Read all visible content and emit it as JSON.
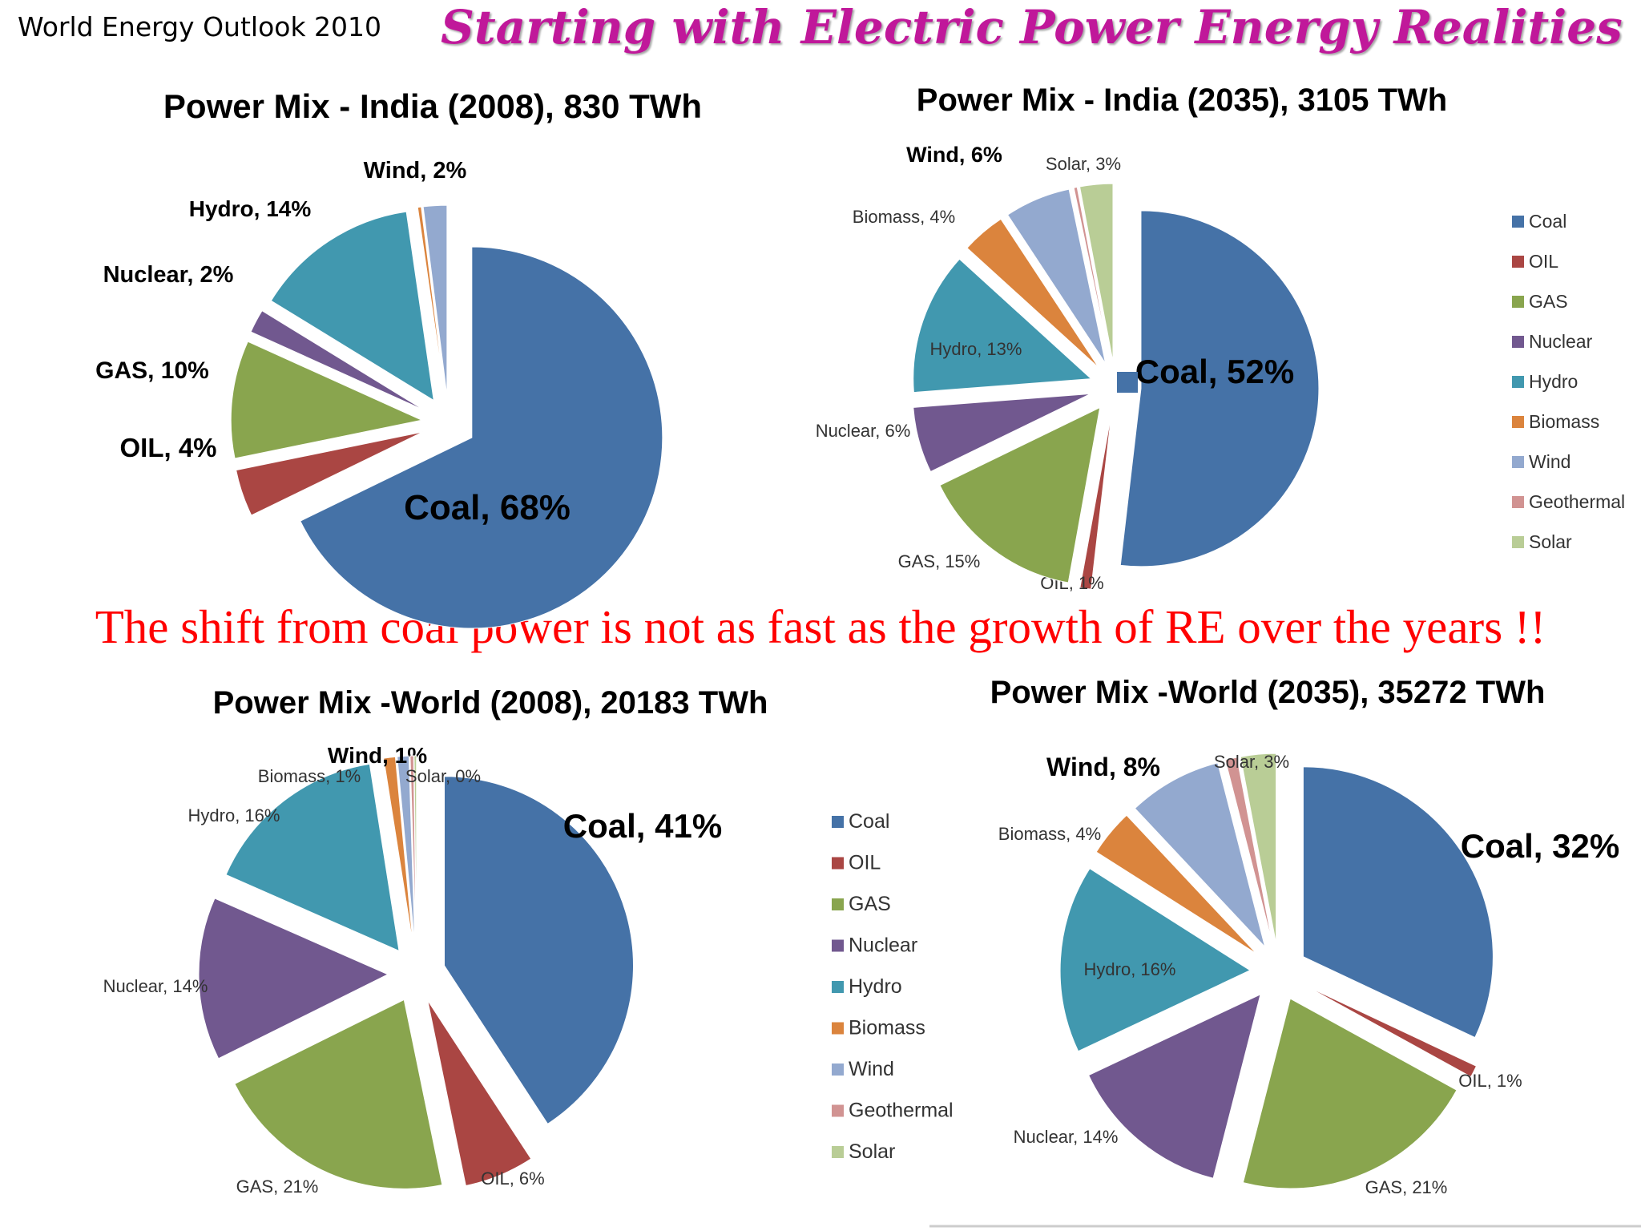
{
  "source": "World Energy Outlook 2010",
  "title": "Starting  with  Electric Power  Energy  Realities",
  "headline": "The shift from coal power is not  as  fast  as  the growth of RE  over the years !!",
  "colors": {
    "Coal": "#4572a7",
    "OIL": "#aa4643",
    "GAS": "#89a54e",
    "Nuclear": "#71588f",
    "Hydro": "#4198af",
    "Biomass": "#db843d",
    "Wind": "#93a9cf",
    "Geothermal": "#d19392",
    "Solar": "#b9cd96"
  },
  "legend": [
    "Coal",
    "OIL",
    "GAS",
    "Nuclear",
    "Hydro",
    "Biomass",
    "Wind",
    "Geothermal",
    "Solar"
  ],
  "chart_data": [
    {
      "type": "pie",
      "title": "Power Mix - India (2008), 830 TWh",
      "slices": [
        {
          "name": "Coal",
          "value": 68,
          "label": "Coal, 68%"
        },
        {
          "name": "OIL",
          "value": 4,
          "label": "OIL, 4%"
        },
        {
          "name": "GAS",
          "value": 10,
          "label": "GAS, 10%"
        },
        {
          "name": "Nuclear",
          "value": 2,
          "label": "Nuclear, 2%"
        },
        {
          "name": "Hydro",
          "value": 14,
          "label": "Hydro, 14%"
        },
        {
          "name": "Biomass",
          "value": 0.3,
          "label": ""
        },
        {
          "name": "Wind",
          "value": 2,
          "label": "Wind, 2%"
        }
      ]
    },
    {
      "type": "pie",
      "title": "Power Mix - India (2035), 3105 TWh",
      "slices": [
        {
          "name": "Coal",
          "value": 52,
          "label": "Coal, 52%"
        },
        {
          "name": "OIL",
          "value": 1,
          "label": "OIL, 1%"
        },
        {
          "name": "GAS",
          "value": 15,
          "label": "GAS, 15%"
        },
        {
          "name": "Nuclear",
          "value": 6,
          "label": "Nuclear, 6%"
        },
        {
          "name": "Hydro",
          "value": 13,
          "label": "Hydro, 13%"
        },
        {
          "name": "Biomass",
          "value": 4,
          "label": "Biomass, 4%"
        },
        {
          "name": "Wind",
          "value": 6,
          "label": "Wind, 6%"
        },
        {
          "name": "Geothermal",
          "value": 0.3,
          "label": ""
        },
        {
          "name": "Solar",
          "value": 3,
          "label": "Solar, 3%"
        }
      ],
      "legend_position": "right"
    },
    {
      "type": "pie",
      "title": "Power Mix -World (2008), 20183 TWh",
      "slices": [
        {
          "name": "Coal",
          "value": 41,
          "label": "Coal, 41%"
        },
        {
          "name": "OIL",
          "value": 6,
          "label": "OIL, 6%"
        },
        {
          "name": "GAS",
          "value": 21,
          "label": "GAS, 21%"
        },
        {
          "name": "Nuclear",
          "value": 14,
          "label": "Nuclear, 14%"
        },
        {
          "name": "Hydro",
          "value": 16,
          "label": "Hydro, 16%"
        },
        {
          "name": "Biomass",
          "value": 1,
          "label": "Biomass, 1%"
        },
        {
          "name": "Wind",
          "value": 1,
          "label": "Wind, 1%"
        },
        {
          "name": "Geothermal",
          "value": 0.3,
          "label": ""
        },
        {
          "name": "Solar",
          "value": 0.2,
          "label": "Solar, 0%"
        }
      ],
      "legend_position": "right"
    },
    {
      "type": "pie",
      "title": "Power Mix -World (2035), 35272 TWh",
      "slices": [
        {
          "name": "Coal",
          "value": 32,
          "label": "Coal, 32%"
        },
        {
          "name": "OIL",
          "value": 1,
          "label": "OIL, 1%"
        },
        {
          "name": "GAS",
          "value": 21,
          "label": "GAS, 21%"
        },
        {
          "name": "Nuclear",
          "value": 14,
          "label": "Nuclear, 14%"
        },
        {
          "name": "Hydro",
          "value": 16,
          "label": "Hydro, 16%"
        },
        {
          "name": "Biomass",
          "value": 4,
          "label": "Biomass, 4%"
        },
        {
          "name": "Wind",
          "value": 8,
          "label": "Wind, 8%"
        },
        {
          "name": "Geothermal",
          "value": 1,
          "label": ""
        },
        {
          "name": "Solar",
          "value": 3,
          "label": "Solar, 3%"
        }
      ]
    }
  ]
}
